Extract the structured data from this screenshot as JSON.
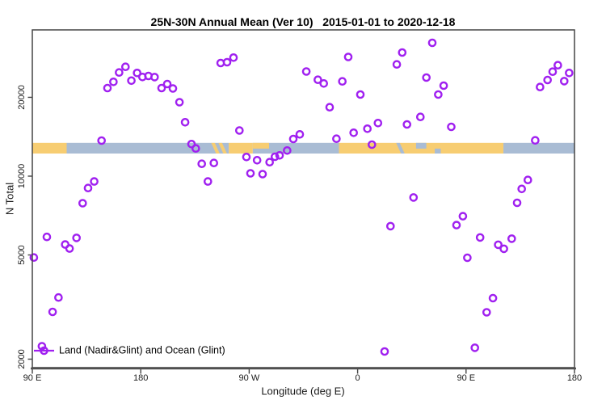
{
  "chart_data": {
    "type": "scatter",
    "title": "25N-30N Annual Mean (Ver 10)   2015-01-01 to 2020-12-18",
    "xlabel": "Longitude (deg E)",
    "ylabel": "N Total",
    "grid": false,
    "legend": {
      "label": "Land (Nadir&Glint) and Ocean (Glint)",
      "position": "bottomleft"
    },
    "x_axis": {
      "description": "longitude axis spans 450 deg, starting at 90E and wrapping eastward through 180, 90W, 0, 90E to 180",
      "domain": [
        90,
        540
      ],
      "ticks": [
        {
          "value": 90,
          "label": "90 E"
        },
        {
          "value": 180,
          "label": "180"
        },
        {
          "value": 270,
          "label": "90 W"
        },
        {
          "value": 360,
          "label": "0"
        },
        {
          "value": 450,
          "label": "90 E"
        },
        {
          "value": 540,
          "label": "180"
        }
      ]
    },
    "y_axis": {
      "scale": "log",
      "domain": [
        1856,
        36190
      ],
      "ticks": [
        {
          "value": 2000,
          "label": "2000"
        },
        {
          "value": 5000,
          "label": "5000"
        },
        {
          "value": 10000,
          "label": "10000"
        },
        {
          "value": 20000,
          "label": "20000"
        }
      ]
    },
    "map_band": {
      "description": "25N-30N world map strip drawn across the plot",
      "n_range": [
        12200,
        13400
      ],
      "land_color": "#F7CD72",
      "ocean_color": "#A9BCD4",
      "segments": [
        {
          "surface": "land",
          "from": 90,
          "to": 118.5
        },
        {
          "surface": "ocean",
          "from": 118.5,
          "to": 253
        },
        {
          "surface": "land",
          "from": 253,
          "to": 273
        },
        {
          "surface": "ocean",
          "from": 273,
          "to": 344.5
        },
        {
          "surface": "land",
          "from": 344.5,
          "to": 481
        },
        {
          "surface": "ocean",
          "from": 481,
          "to": 540
        }
      ],
      "overlays": [
        {
          "surface": "land",
          "from": 240.5,
          "to": 243.5,
          "part": "diag",
          "feature": "baja-california"
        },
        {
          "surface": "land",
          "from": 246.5,
          "to": 249.5,
          "part": "diag",
          "feature": "baja-california"
        },
        {
          "surface": "land",
          "from": 273,
          "to": 286.5,
          "part": "top",
          "feature": "gulf-coast-florida"
        },
        {
          "surface": "ocean",
          "from": 394,
          "to": 397,
          "part": "diag",
          "feature": "red-sea"
        },
        {
          "surface": "ocean",
          "from": 408.5,
          "to": 417,
          "part": "top",
          "feature": "persian-gulf"
        },
        {
          "surface": "ocean",
          "from": 424,
          "to": 429,
          "part": "bottom",
          "feature": "arabian-sea-coast"
        }
      ]
    },
    "series": [
      {
        "name": "Land (Nadir&Glint) and Ocean (Glint)",
        "marker": "open-circle",
        "color": "#A020F0",
        "points": [
          [
            91.3,
            4890
          ],
          [
            98.0,
            2240
          ],
          [
            102.1,
            5860
          ],
          [
            106.8,
            3030
          ],
          [
            111.7,
            3440
          ],
          [
            117.3,
            5480
          ],
          [
            120.9,
            5290
          ],
          [
            126.7,
            5810
          ],
          [
            131.8,
            7880
          ],
          [
            136.3,
            9010
          ],
          [
            141.4,
            9540
          ],
          [
            147.5,
            13670
          ],
          [
            152.4,
            21690
          ],
          [
            157.3,
            22910
          ],
          [
            162.0,
            24890
          ],
          [
            167.3,
            26150
          ],
          [
            172.2,
            23160
          ],
          [
            177.0,
            24780
          ],
          [
            181.4,
            23920
          ],
          [
            186.4,
            24140
          ],
          [
            191.5,
            23890
          ],
          [
            197.3,
            21690
          ],
          [
            202.0,
            22480
          ],
          [
            206.7,
            21620
          ],
          [
            212.1,
            19160
          ],
          [
            216.8,
            16060
          ],
          [
            222.1,
            13260
          ],
          [
            225.7,
            12760
          ],
          [
            230.6,
            11150
          ],
          [
            235.7,
            9540
          ],
          [
            240.7,
            11230
          ],
          [
            246.3,
            27040
          ],
          [
            251.6,
            27230
          ],
          [
            257.0,
            28360
          ],
          [
            261.9,
            14940
          ],
          [
            267.7,
            11830
          ],
          [
            271.1,
            10250
          ],
          [
            276.6,
            11500
          ],
          [
            281.1,
            10180
          ],
          [
            287.0,
            11310
          ],
          [
            291.4,
            11860
          ],
          [
            295.2,
            12000
          ],
          [
            301.5,
            12530
          ],
          [
            306.6,
            13870
          ],
          [
            312.0,
            14440
          ],
          [
            317.4,
            25100
          ],
          [
            327.0,
            23340
          ],
          [
            331.9,
            22590
          ],
          [
            336.8,
            18330
          ],
          [
            342.4,
            13900
          ],
          [
            347.3,
            23010
          ],
          [
            352.2,
            28530
          ],
          [
            356.7,
            14650
          ],
          [
            362.3,
            20500
          ],
          [
            368.1,
            15180
          ],
          [
            371.9,
            13190
          ],
          [
            376.9,
            15950
          ],
          [
            382.4,
            2140
          ],
          [
            387.3,
            6440
          ],
          [
            392.5,
            26720
          ],
          [
            397.0,
            29660
          ],
          [
            401.0,
            15760
          ],
          [
            406.4,
            8290
          ],
          [
            412.1,
            16840
          ],
          [
            417.1,
            23800
          ],
          [
            422.0,
            32310
          ],
          [
            426.9,
            20500
          ],
          [
            431.4,
            22160
          ],
          [
            437.7,
            15430
          ],
          [
            442.1,
            6500
          ],
          [
            447.4,
            7030
          ],
          [
            451.1,
            4880
          ],
          [
            457.3,
            2210
          ],
          [
            461.7,
            5830
          ],
          [
            467.1,
            3020
          ],
          [
            472.3,
            3420
          ],
          [
            476.7,
            5470
          ],
          [
            481.4,
            5280
          ],
          [
            487.9,
            5770
          ],
          [
            492.4,
            7910
          ],
          [
            496.2,
            8940
          ],
          [
            501.3,
            9670
          ],
          [
            507.4,
            13700
          ],
          [
            511.4,
            21900
          ],
          [
            517.7,
            23290
          ],
          [
            521.9,
            25060
          ],
          [
            526.2,
            26530
          ],
          [
            531.5,
            23070
          ],
          [
            535.6,
            24780
          ]
        ]
      }
    ],
    "colors": {
      "point": "#A020F0",
      "axis": "#454545",
      "text": "#1a1a1a"
    }
  }
}
